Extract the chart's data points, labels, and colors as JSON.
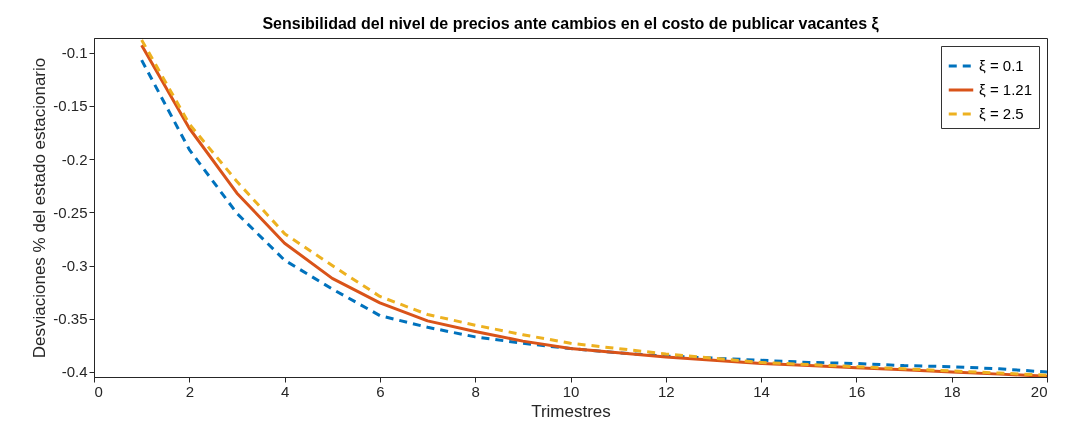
{
  "chart_data": {
    "type": "line",
    "title": "Sensibilidad del nivel de precios ante cambios en el costo de publicar vacantes ξ",
    "xlabel": "Trimestres",
    "ylabel": "Desviaciones % del estado estacionario",
    "x": [
      1,
      2,
      3,
      4,
      5,
      6,
      7,
      8,
      9,
      10,
      11,
      12,
      13,
      14,
      15,
      16,
      17,
      18,
      19,
      20
    ],
    "series": [
      {
        "name": "ξ = 0.1",
        "color": "#0072bd",
        "line_style": "dashed",
        "values": [
          -0.107,
          -0.191,
          -0.251,
          -0.295,
          -0.322,
          -0.347,
          -0.358,
          -0.367,
          -0.373,
          -0.378,
          -0.382,
          -0.385,
          -0.387,
          -0.389,
          -0.391,
          -0.392,
          -0.394,
          -0.395,
          -0.397,
          -0.4
        ]
      },
      {
        "name": "ξ = 1.21",
        "color": "#d95319",
        "line_style": "solid",
        "values": [
          -0.093,
          -0.171,
          -0.232,
          -0.279,
          -0.312,
          -0.335,
          -0.352,
          -0.362,
          -0.371,
          -0.378,
          -0.382,
          -0.386,
          -0.389,
          -0.392,
          -0.394,
          -0.396,
          -0.398,
          -0.4,
          -0.402,
          -0.404
        ]
      },
      {
        "name": "ξ = 2.5",
        "color": "#edb120",
        "line_style": "dashed",
        "values": [
          -0.088,
          -0.167,
          -0.221,
          -0.27,
          -0.3,
          -0.329,
          -0.346,
          -0.356,
          -0.365,
          -0.373,
          -0.378,
          -0.383,
          -0.387,
          -0.391,
          -0.393,
          -0.395,
          -0.397,
          -0.399,
          -0.401,
          -0.403
        ]
      }
    ],
    "xlim": [
      0,
      20
    ],
    "xticks": [
      0,
      2,
      4,
      6,
      8,
      10,
      12,
      14,
      16,
      18,
      20
    ],
    "ylim": [
      -0.4047,
      -0.0862
    ],
    "yticks": [
      -0.4,
      -0.35,
      -0.3,
      -0.25,
      -0.2,
      -0.15,
      -0.1
    ],
    "grid": false,
    "legend": "top right"
  }
}
